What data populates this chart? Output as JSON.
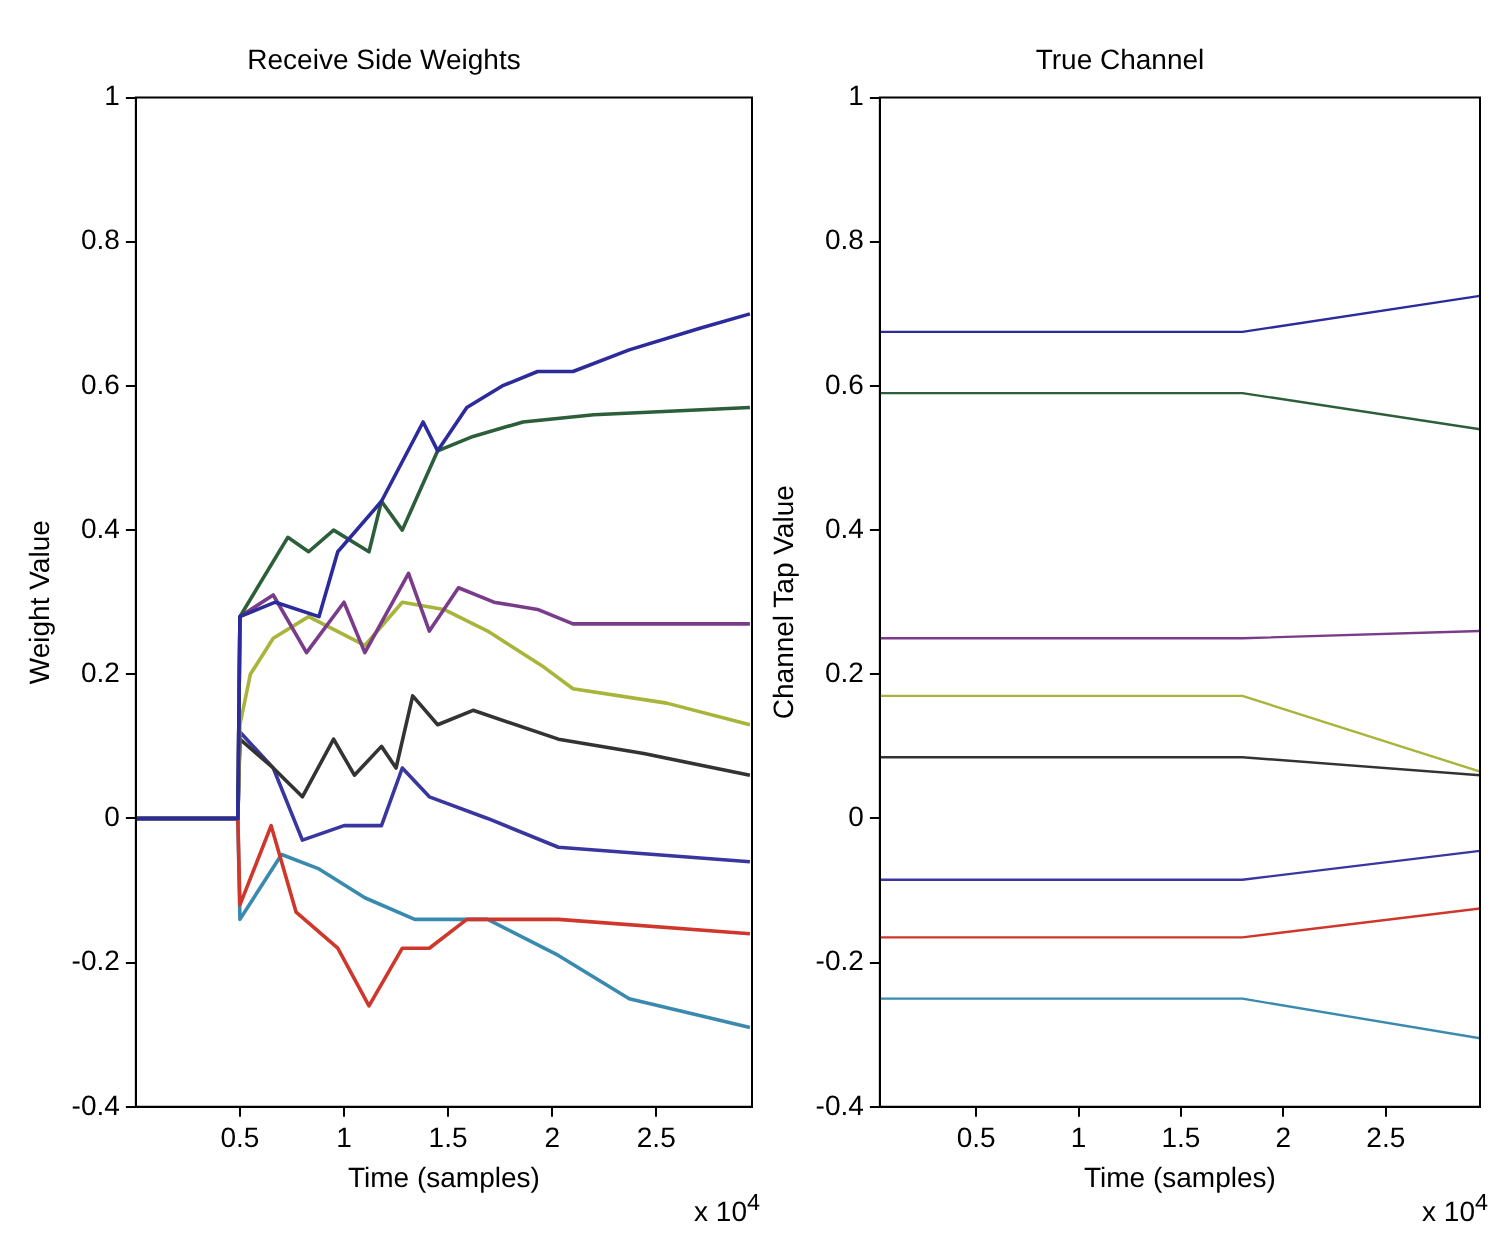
{
  "chart_data": [
    {
      "type": "line",
      "title": "Receive Side Weights",
      "xlabel": "Time (samples)",
      "ylabel": "Weight Value",
      "xlim": [
        0,
        2.96
      ],
      "xticks": [
        0.5,
        1,
        1.5,
        2,
        2.5
      ],
      "ylim": [
        -0.4,
        1
      ],
      "yticks": [
        -0.4,
        -0.2,
        0,
        0.2,
        0.4,
        0.6,
        0.8,
        1
      ],
      "annotations": [
        "x 10$^{4}$"
      ],
      "series": [
        {
          "color": "#2b2b9c",
          "x": [
            0,
            0.49,
            0.5,
            0.67,
            0.88,
            0.97,
            1.18,
            1.38,
            1.45,
            1.59,
            1.76,
            1.93,
            2.1,
            2.37,
            2.71,
            2.95
          ],
          "values": [
            0,
            0,
            0.28,
            0.3,
            0.28,
            0.37,
            0.44,
            0.55,
            0.51,
            0.57,
            0.6,
            0.62,
            0.62,
            0.65,
            0.68,
            0.7
          ]
        },
        {
          "color": "#2d5e3a",
          "x": [
            0,
            0.49,
            0.5,
            0.73,
            0.83,
            0.95,
            1.12,
            1.18,
            1.28,
            1.45,
            1.62,
            1.86,
            2.2,
            2.95
          ],
          "values": [
            0,
            0,
            0.28,
            0.39,
            0.37,
            0.4,
            0.37,
            0.44,
            0.4,
            0.51,
            0.53,
            0.55,
            0.56,
            0.57
          ]
        },
        {
          "color": "#7a3b8a",
          "x": [
            0,
            0.49,
            0.5,
            0.66,
            0.82,
            1,
            1.1,
            1.31,
            1.41,
            1.55,
            1.72,
            1.93,
            2.1,
            2.44,
            2.95
          ],
          "values": [
            0,
            0,
            0.28,
            0.31,
            0.23,
            0.3,
            0.23,
            0.34,
            0.26,
            0.32,
            0.3,
            0.29,
            0.27,
            0.27,
            0.27
          ]
        },
        {
          "color": "#a8b43a",
          "x": [
            0,
            0.49,
            0.5,
            0.55,
            0.66,
            0.83,
            1.1,
            1.28,
            1.48,
            1.69,
            1.96,
            2.1,
            2.55,
            2.95
          ],
          "values": [
            0,
            0,
            0.13,
            0.2,
            0.25,
            0.28,
            0.24,
            0.3,
            0.29,
            0.26,
            0.21,
            0.18,
            0.16,
            0.13
          ]
        },
        {
          "color": "#333333",
          "x": [
            0,
            0.49,
            0.5,
            0.66,
            0.8,
            0.95,
            1.05,
            1.18,
            1.25,
            1.33,
            1.45,
            1.62,
            2.03,
            2.44,
            2.95
          ],
          "values": [
            0,
            0,
            0.11,
            0.07,
            0.03,
            0.11,
            0.06,
            0.1,
            0.07,
            0.17,
            0.13,
            0.15,
            0.11,
            0.09,
            0.06
          ]
        },
        {
          "color": "#3a36a0",
          "x": [
            0,
            0.49,
            0.5,
            0.66,
            0.8,
            1,
            1.18,
            1.28,
            1.41,
            1.69,
            2.03,
            2.95
          ],
          "values": [
            0,
            0,
            0.12,
            0.07,
            -0.03,
            -0.01,
            -0.01,
            0.07,
            0.03,
            0,
            -0.04,
            -0.06
          ]
        },
        {
          "color": "#d0372c",
          "x": [
            0,
            0.49,
            0.5,
            0.65,
            0.77,
            0.97,
            1.12,
            1.28,
            1.41,
            1.59,
            1.76,
            2.03,
            2.95
          ],
          "values": [
            0,
            0,
            -0.12,
            -0.01,
            -0.13,
            -0.18,
            -0.26,
            -0.18,
            -0.18,
            -0.14,
            -0.14,
            -0.14,
            -0.16
          ]
        },
        {
          "color": "#3a8ab0",
          "x": [
            0,
            0.49,
            0.5,
            0.7,
            0.88,
            1.1,
            1.34,
            1.69,
            2.03,
            2.37,
            2.95
          ],
          "values": [
            0,
            0,
            -0.14,
            -0.05,
            -0.07,
            -0.11,
            -0.14,
            -0.14,
            -0.19,
            -0.25,
            -0.29
          ]
        }
      ]
    },
    {
      "type": "line",
      "title": "True Channel",
      "xlabel": "Time (samples)",
      "ylabel": "Channel Tap Value",
      "xlim": [
        0.03,
        2.96
      ],
      "xticks": [
        0.5,
        1,
        1.5,
        2,
        2.5
      ],
      "ylim": [
        -0.4,
        1
      ],
      "yticks": [
        -0.4,
        -0.2,
        0,
        0.2,
        0.4,
        0.6,
        0.8,
        1
      ],
      "annotations": [
        "x 10$^{4}$"
      ],
      "series": [
        {
          "color": "#2b2b9c",
          "x": [
            0.03,
            1.8,
            2.96
          ],
          "values": [
            0.675,
            0.675,
            0.725
          ]
        },
        {
          "color": "#2d5e3a",
          "x": [
            0.03,
            1.8,
            2.96
          ],
          "values": [
            0.59,
            0.59,
            0.54
          ]
        },
        {
          "color": "#7a3b8a",
          "x": [
            0.03,
            1.8,
            2.96
          ],
          "values": [
            0.25,
            0.25,
            0.26
          ]
        },
        {
          "color": "#a8b43a",
          "x": [
            0.03,
            1.8,
            2.96
          ],
          "values": [
            0.17,
            0.17,
            0.065
          ]
        },
        {
          "color": "#333333",
          "x": [
            0.03,
            1.8,
            2.96
          ],
          "values": [
            0.085,
            0.085,
            0.06
          ]
        },
        {
          "color": "#3a36a0",
          "x": [
            0.03,
            1.8,
            2.96
          ],
          "values": [
            -0.085,
            -0.085,
            -0.045
          ]
        },
        {
          "color": "#d0372c",
          "x": [
            0.03,
            1.8,
            2.96
          ],
          "values": [
            -0.165,
            -0.165,
            -0.125
          ]
        },
        {
          "color": "#3a8ab0",
          "x": [
            0.03,
            1.8,
            2.96
          ],
          "values": [
            -0.25,
            -0.25,
            -0.305
          ]
        }
      ]
    }
  ]
}
